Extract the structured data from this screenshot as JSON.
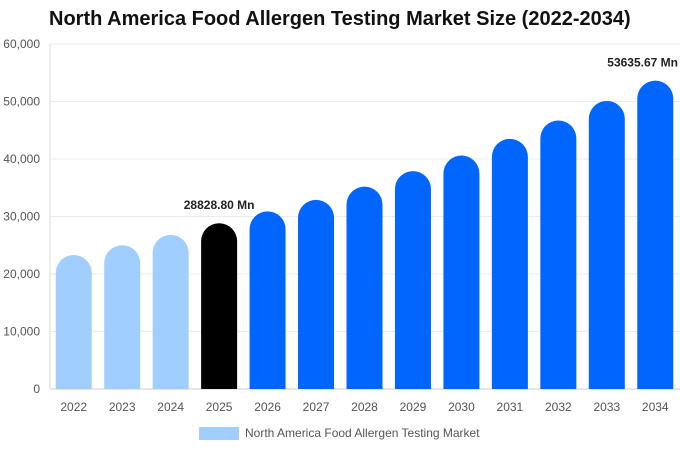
{
  "chart_data": {
    "type": "bar",
    "title": "North America Food Allergen Testing Market Size (2022-2034)",
    "xlabel": "",
    "ylabel": "",
    "ylim": [
      0,
      60000
    ],
    "yticks": [
      0,
      10000,
      20000,
      30000,
      40000,
      50000,
      60000
    ],
    "ytick_labels": [
      "0",
      "10,000",
      "20,000",
      "30,000",
      "40,000",
      "50,000",
      "60,000"
    ],
    "grid": true,
    "legend_position": "bottom",
    "categories": [
      "2022",
      "2023",
      "2024",
      "2025",
      "2026",
      "2027",
      "2028",
      "2029",
      "2030",
      "2031",
      "2032",
      "2033",
      "2034"
    ],
    "series": [
      {
        "name": "North America Food Allergen Testing Market",
        "values": [
          23300,
          25000,
          26800,
          28828.8,
          30900,
          32900,
          35200,
          37900,
          40600,
          43500,
          46700,
          50100,
          53635.67
        ],
        "colors": [
          "#a0cfff",
          "#a0cfff",
          "#a0cfff",
          "#000000",
          "#0066ff",
          "#0066ff",
          "#0066ff",
          "#0066ff",
          "#0066ff",
          "#0066ff",
          "#0066ff",
          "#0066ff",
          "#0066ff"
        ]
      }
    ],
    "data_labels": [
      {
        "category": "2025",
        "text": "28828.80 Mn"
      },
      {
        "category": "2034",
        "text": "53635.67 Mn"
      }
    ],
    "legend_color": "#a0cfff"
  }
}
